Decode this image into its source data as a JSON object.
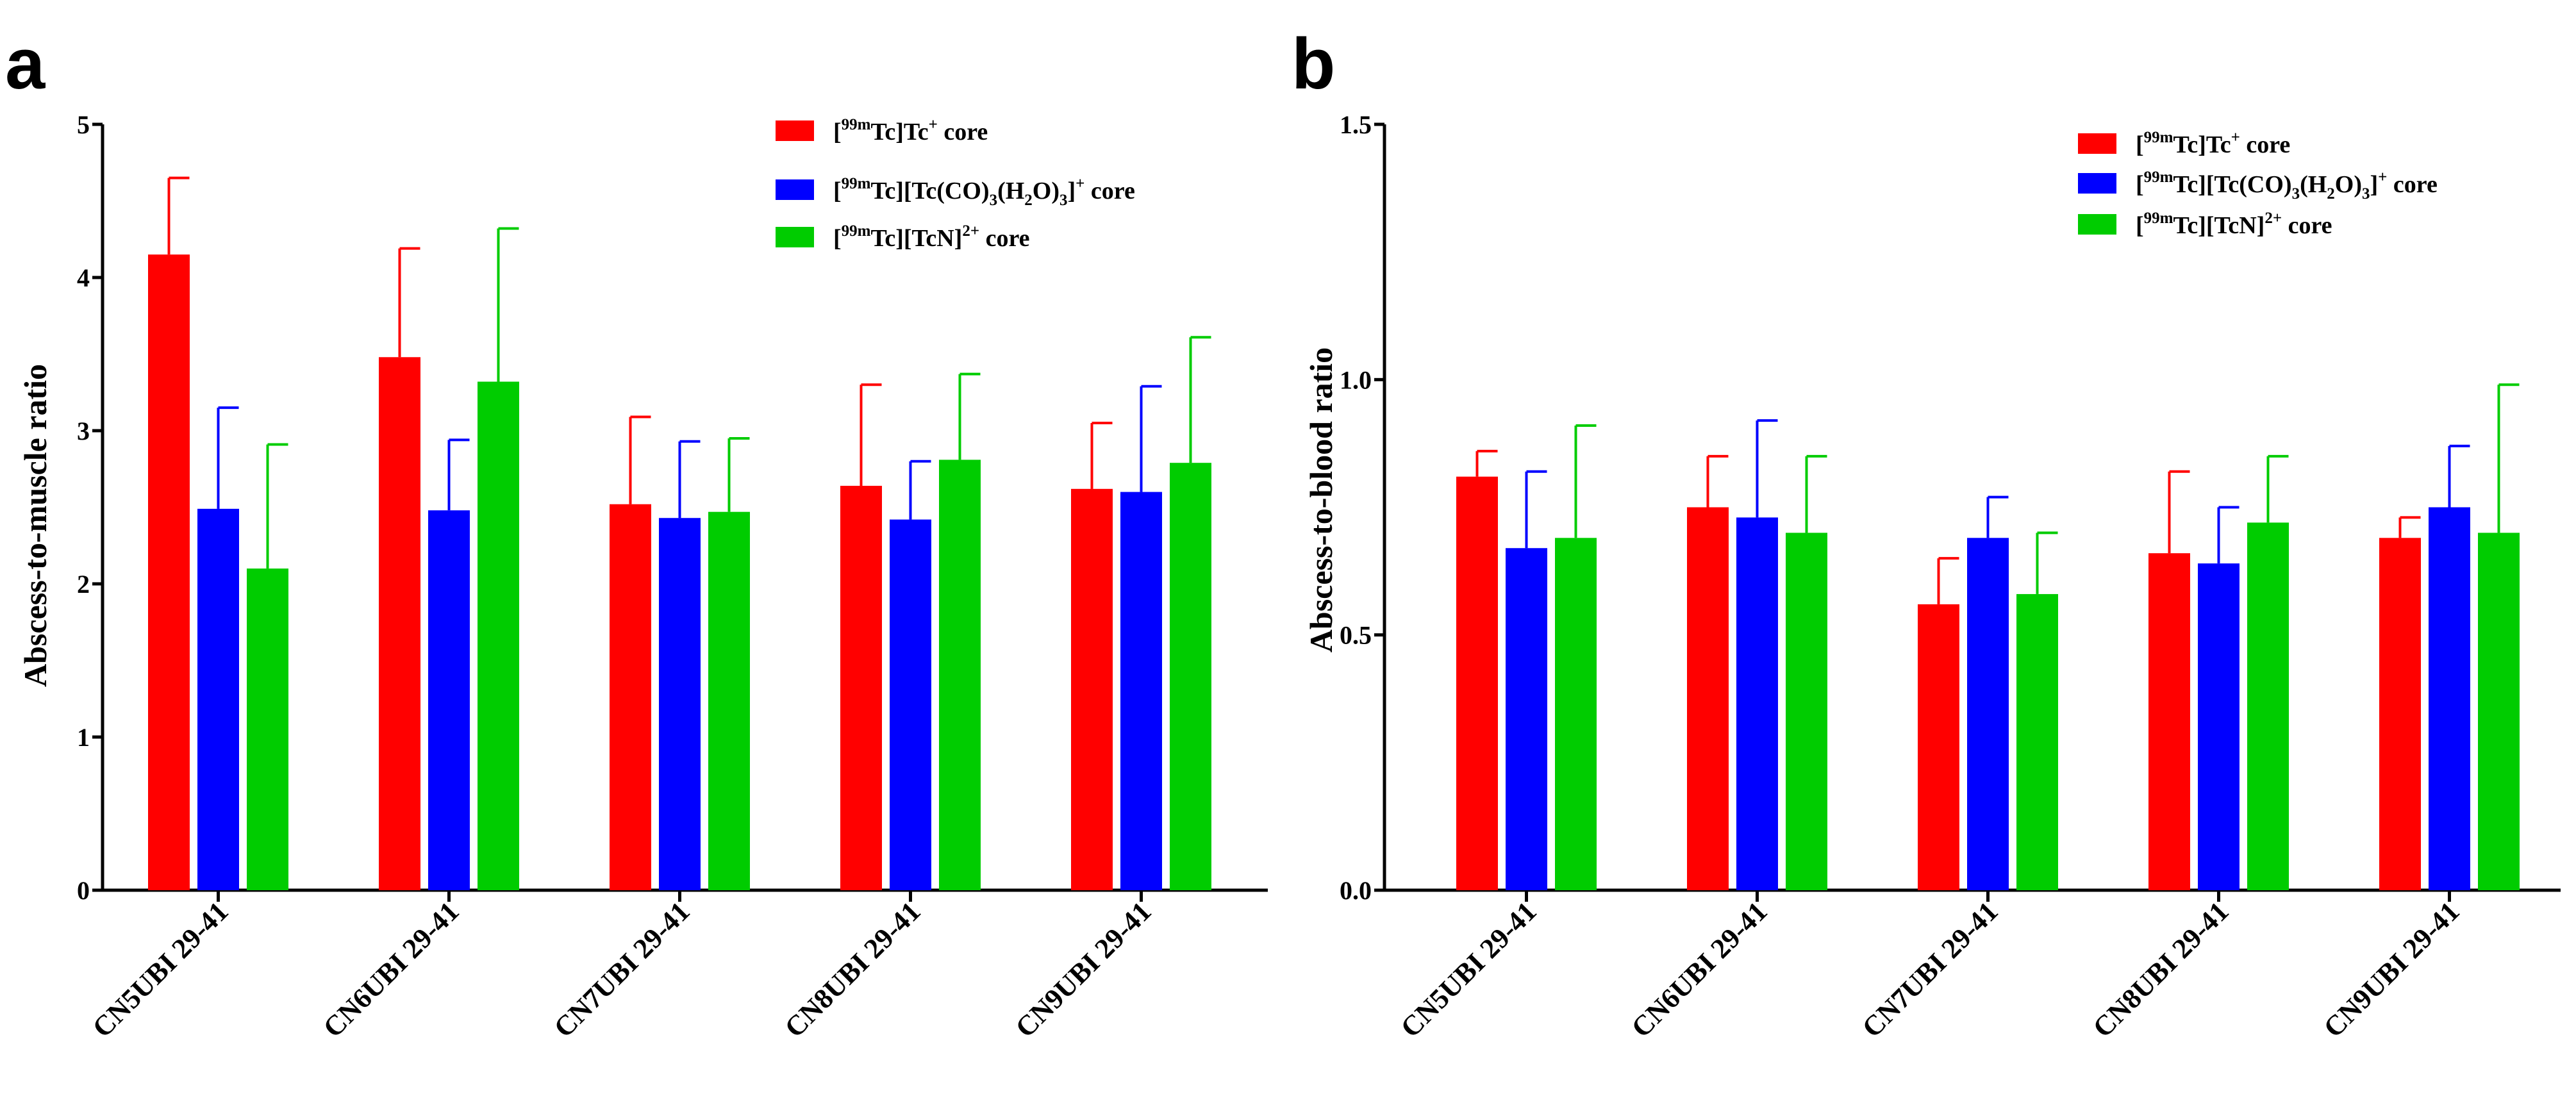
{
  "colors": {
    "series1": "#ff0000",
    "series2": "#0000ff",
    "series3": "#00cc00",
    "axis": "#000000"
  },
  "legend_text": {
    "s1": {
      "bracket": "[",
      "sup1": "99m",
      "mid": "Tc]Tc",
      "sup2": "+",
      "tail": " core"
    },
    "s2": {
      "bracket": "[",
      "sup1": "99m",
      "mid": "Tc][Tc(CO)",
      "sub1": "3",
      "mid2": "(H",
      "sub2": "2",
      "mid3": "O)",
      "sub3": "3",
      "mid4": "]",
      "sup2": "+",
      "tail": " core"
    },
    "s3": {
      "bracket": "[",
      "sup1": "99m",
      "mid": "Tc][TcN]",
      "sup2": "2+",
      "tail": " core"
    }
  },
  "chart_data": [
    {
      "panel": "a",
      "type": "bar",
      "title": "",
      "xlabel": "",
      "ylabel": "Abscess-to-muscle ratio",
      "ylim": [
        0,
        5
      ],
      "yticks": [
        "0",
        "1",
        "2",
        "3",
        "4",
        "5"
      ],
      "grid": false,
      "legend_position": "top-right",
      "categories": [
        "CN5UBI 29-41",
        "CN6UBI 29-41",
        "CN7UBI 29-41",
        "CN8UBI 29-41",
        "CN9UBI 29-41"
      ],
      "series": [
        {
          "name": "[99mTc]Tc+ core",
          "values": [
            4.15,
            3.48,
            2.52,
            2.64,
            2.62
          ],
          "errors": [
            0.5,
            0.71,
            0.57,
            0.66,
            0.43
          ]
        },
        {
          "name": "[99mTc][Tc(CO)3(H2O)3]+ core",
          "values": [
            2.49,
            2.48,
            2.43,
            2.42,
            2.6
          ],
          "errors": [
            0.66,
            0.46,
            0.5,
            0.38,
            0.69
          ]
        },
        {
          "name": "[99mTc][TcN]2+ core",
          "values": [
            2.1,
            3.32,
            2.47,
            2.81,
            2.79
          ],
          "errors": [
            0.81,
            1.0,
            0.48,
            0.56,
            0.82
          ]
        }
      ]
    },
    {
      "panel": "b",
      "type": "bar",
      "title": "",
      "xlabel": "",
      "ylabel": "Abscess-to-blood ratio",
      "ylim": [
        0,
        1.5
      ],
      "yticks": [
        "0.0",
        "0.5",
        "1.0",
        "1.5"
      ],
      "grid": false,
      "legend_position": "top-right",
      "categories": [
        "CN5UBI 29-41",
        "CN6UBI 29-41",
        "CN7UBI 29-41",
        "CN8UBI 29-41",
        "CN9UBI 29-41"
      ],
      "series": [
        {
          "name": "[99mTc]Tc+ core",
          "values": [
            0.81,
            0.75,
            0.56,
            0.66,
            0.69
          ],
          "errors": [
            0.05,
            0.1,
            0.09,
            0.16,
            0.04
          ]
        },
        {
          "name": "[99mTc][Tc(CO)3(H2O)3]+ core",
          "values": [
            0.67,
            0.73,
            0.69,
            0.64,
            0.75
          ],
          "errors": [
            0.15,
            0.19,
            0.08,
            0.11,
            0.12
          ]
        },
        {
          "name": "[99mTc][TcN]2+ core",
          "values": [
            0.69,
            0.7,
            0.58,
            0.72,
            0.7
          ],
          "errors": [
            0.22,
            0.15,
            0.12,
            0.13,
            0.29
          ]
        }
      ]
    }
  ]
}
